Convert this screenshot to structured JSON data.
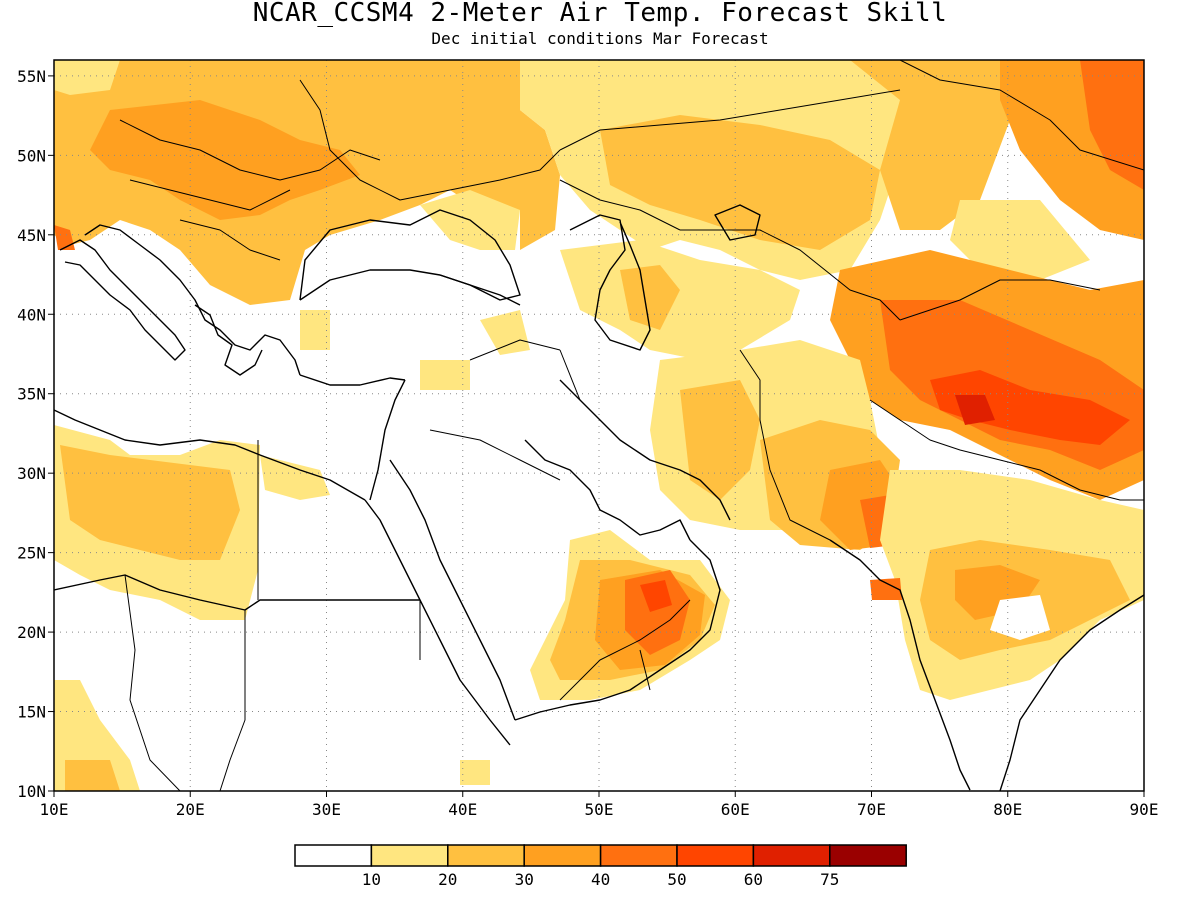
{
  "title": "NCAR_CCSM4 2-Meter Air Temp. Forecast Skill",
  "subtitle": "Dec initial conditions  Mar Forecast",
  "map": {
    "lon_range": [
      10,
      90
    ],
    "lat_range": [
      10,
      56
    ],
    "lon_ticks": [
      "10E",
      "20E",
      "30E",
      "40E",
      "50E",
      "60E",
      "70E",
      "80E",
      "90E"
    ],
    "lat_ticks": [
      "10N",
      "15N",
      "20N",
      "25N",
      "30N",
      "35N",
      "40N",
      "45N",
      "50N",
      "55N"
    ],
    "gridlines": "dotted",
    "region": "Europe, Middle East, Arabian Peninsula and South Asia"
  },
  "colorbar": {
    "colors": [
      "#ffffff",
      "#ffe680",
      "#ffc040",
      "#ffa020",
      "#ff7010",
      "#ff4500",
      "#e02000",
      "#9a0000"
    ],
    "labels": [
      "10",
      "20",
      "30",
      "40",
      "50",
      "60",
      "75"
    ]
  }
}
